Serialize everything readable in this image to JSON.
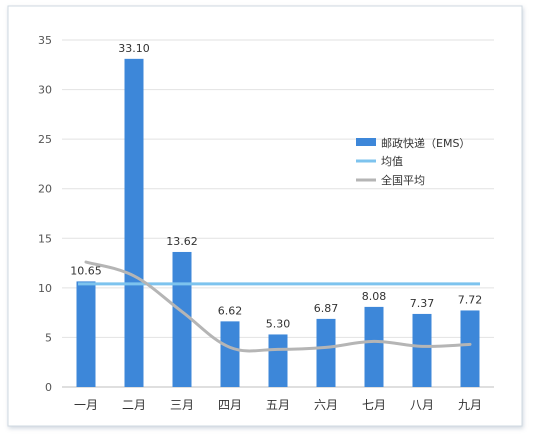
{
  "chart_data": {
    "type": "bar",
    "categories": [
      "一月",
      "二月",
      "三月",
      "四月",
      "五月",
      "六月",
      "七月",
      "八月",
      "九月"
    ],
    "series": [
      {
        "name": "邮政快递（EMS）",
        "type": "bar",
        "color": "#3d87d9",
        "values": [
          10.65,
          33.1,
          13.62,
          6.62,
          5.3,
          6.87,
          8.08,
          7.37,
          7.72
        ],
        "labels": [
          "10.65",
          "33.10",
          "13.62",
          "6.62",
          "5.30",
          "6.87",
          "8.08",
          "7.37",
          "7.72"
        ]
      },
      {
        "name": "均值",
        "type": "line",
        "color": "#7dc3ee",
        "values": [
          10.4,
          10.4,
          10.4,
          10.4,
          10.4,
          10.4,
          10.4,
          10.4,
          10.4
        ]
      },
      {
        "name": "全国平均",
        "type": "line",
        "smooth": true,
        "color": "#b5b5b5",
        "values": [
          12.6,
          11.2,
          7.6,
          4.0,
          3.8,
          4.0,
          4.6,
          4.1,
          4.3
        ]
      }
    ],
    "ylim": [
      0,
      35
    ],
    "yticks": [
      0,
      5,
      10,
      15,
      20,
      25,
      30,
      35
    ],
    "grid": true,
    "legend_position": "right",
    "title": "",
    "xlabel": "",
    "ylabel": ""
  }
}
